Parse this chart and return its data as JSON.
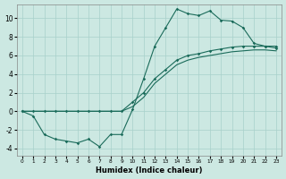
{
  "xlabel": "Humidex (Indice chaleur)",
  "bg_color": "#cce8e2",
  "grid_color": "#a8d0ca",
  "line_color": "#1a6b5a",
  "xlim": [
    -0.5,
    23.5
  ],
  "ylim": [
    -4.8,
    11.5
  ],
  "xticks": [
    0,
    1,
    2,
    3,
    4,
    5,
    6,
    7,
    8,
    9,
    10,
    11,
    12,
    13,
    14,
    15,
    16,
    17,
    18,
    19,
    20,
    21,
    22,
    23
  ],
  "yticks": [
    -4,
    -2,
    0,
    2,
    4,
    6,
    8,
    10
  ],
  "line1_x": [
    0,
    1,
    2,
    3,
    4,
    5,
    6,
    7,
    8,
    9,
    10,
    11,
    12,
    13,
    14,
    15,
    16,
    17,
    18,
    19,
    20,
    21,
    22,
    23
  ],
  "line1_y": [
    0,
    -0.5,
    -2.5,
    -3.0,
    -3.2,
    -3.4,
    -3.0,
    -3.8,
    -2.5,
    -2.5,
    0.2,
    3.5,
    7.0,
    9.0,
    11.0,
    10.5,
    10.3,
    10.8,
    9.8,
    9.7,
    9.0,
    7.3,
    7.0,
    6.8
  ],
  "line2_x": [
    0,
    1,
    2,
    3,
    4,
    5,
    6,
    7,
    8,
    9,
    10,
    11,
    12,
    13,
    14,
    15,
    16,
    17,
    18,
    19,
    20,
    21,
    22,
    23
  ],
  "line2_y": [
    0,
    0,
    0,
    0,
    0,
    0,
    0,
    0,
    0,
    0,
    1.0,
    2.0,
    3.5,
    4.5,
    5.5,
    6.0,
    6.2,
    6.5,
    6.7,
    6.9,
    7.0,
    7.0,
    7.0,
    7.0
  ],
  "line3_x": [
    0,
    1,
    2,
    3,
    4,
    5,
    6,
    7,
    8,
    9,
    10,
    11,
    12,
    13,
    14,
    15,
    16,
    17,
    18,
    19,
    20,
    21,
    22,
    23
  ],
  "line3_y": [
    0,
    0,
    0,
    0,
    0,
    0,
    0,
    0,
    0,
    0,
    0.5,
    1.5,
    3.0,
    4.0,
    5.0,
    5.5,
    5.8,
    6.0,
    6.2,
    6.4,
    6.5,
    6.6,
    6.6,
    6.5
  ]
}
